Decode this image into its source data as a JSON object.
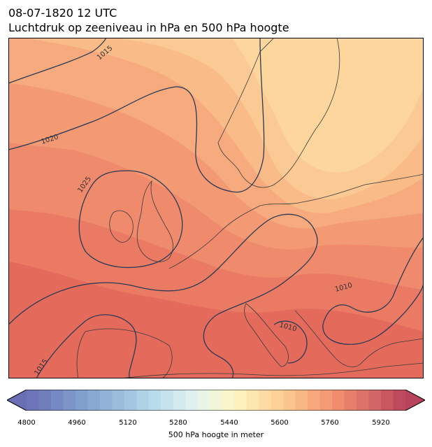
{
  "title": {
    "date": "08-07-1820 12 UTC",
    "description": "Luchtdruk op zeeniveau in hPa en 500 hPa hoogte"
  },
  "map": {
    "region": "Europe",
    "fill_field": "500 hPa geopotential height",
    "contour_field": "sea level pressure",
    "isobar_labels": [
      "1015",
      "1020",
      "1025",
      "1010",
      "1010",
      "1015"
    ]
  },
  "colorbar": {
    "label": "500 hPa hoogte in meter",
    "ticks": [
      "4800",
      "4960",
      "5120",
      "5280",
      "5440",
      "5600",
      "5760",
      "5920"
    ],
    "min": 4760,
    "max": 6000,
    "step": 40,
    "extend": "both"
  },
  "colors": {
    "isobar": "#2b3a55",
    "coast": "#3a3a3a",
    "low_heights": "#6a6fb5",
    "high_heights": "#b8435e",
    "mid_heights": "#fdf5c0"
  }
}
